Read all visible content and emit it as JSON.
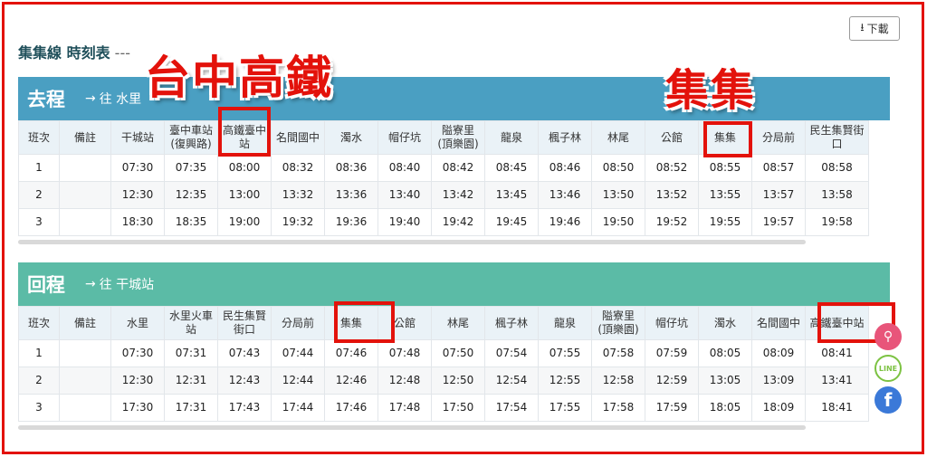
{
  "header": {
    "title": "集集線 時刻表",
    "download": "下載"
  },
  "annotations": {
    "hsr": "台中高鐵",
    "jiji": "集集"
  },
  "social": {
    "line": "LINE"
  },
  "sections": [
    {
      "direction": "去程",
      "destination": "往 水里",
      "columns": [
        "班次",
        "備註",
        "干城站",
        "臺中車站\n(復興路)",
        "高鐵臺中站",
        "名間國中",
        "濁水",
        "帽仔坑",
        "隘寮里\n(頂樂園)",
        "龍泉",
        "楓子林",
        "林尾",
        "公館",
        "集集",
        "分局前",
        "民生集賢街口"
      ],
      "rows": [
        [
          "1",
          "",
          "07:30",
          "07:35",
          "08:00",
          "08:32",
          "08:36",
          "08:40",
          "08:42",
          "08:45",
          "08:46",
          "08:50",
          "08:52",
          "08:55",
          "08:57",
          "08:58"
        ],
        [
          "2",
          "",
          "12:30",
          "12:35",
          "13:00",
          "13:32",
          "13:36",
          "13:40",
          "13:42",
          "13:45",
          "13:46",
          "13:50",
          "13:52",
          "13:55",
          "13:57",
          "13:58"
        ],
        [
          "3",
          "",
          "18:30",
          "18:35",
          "19:00",
          "19:32",
          "19:36",
          "19:40",
          "19:42",
          "19:45",
          "19:46",
          "19:50",
          "19:52",
          "19:55",
          "19:57",
          "19:58"
        ]
      ]
    },
    {
      "direction": "回程",
      "destination": "往 干城站",
      "columns": [
        "班次",
        "備註",
        "水里",
        "水里火車站",
        "民生集賢街口",
        "分局前",
        "集集",
        "公館",
        "林尾",
        "楓子林",
        "龍泉",
        "隘寮里\n(頂樂園)",
        "帽仔坑",
        "濁水",
        "名間國中",
        "高鐵臺中站"
      ],
      "rows": [
        [
          "1",
          "",
          "07:30",
          "07:31",
          "07:43",
          "07:44",
          "07:46",
          "07:48",
          "07:50",
          "07:54",
          "07:55",
          "07:58",
          "07:59",
          "08:05",
          "08:09",
          "08:41"
        ],
        [
          "2",
          "",
          "12:30",
          "12:31",
          "12:43",
          "12:44",
          "12:46",
          "12:48",
          "12:50",
          "12:54",
          "12:55",
          "12:58",
          "12:59",
          "13:05",
          "13:09",
          "13:41"
        ],
        [
          "3",
          "",
          "17:30",
          "17:31",
          "17:43",
          "17:44",
          "17:46",
          "17:48",
          "17:50",
          "17:54",
          "17:55",
          "17:58",
          "17:59",
          "18:05",
          "18:09",
          "18:41"
        ]
      ]
    }
  ]
}
